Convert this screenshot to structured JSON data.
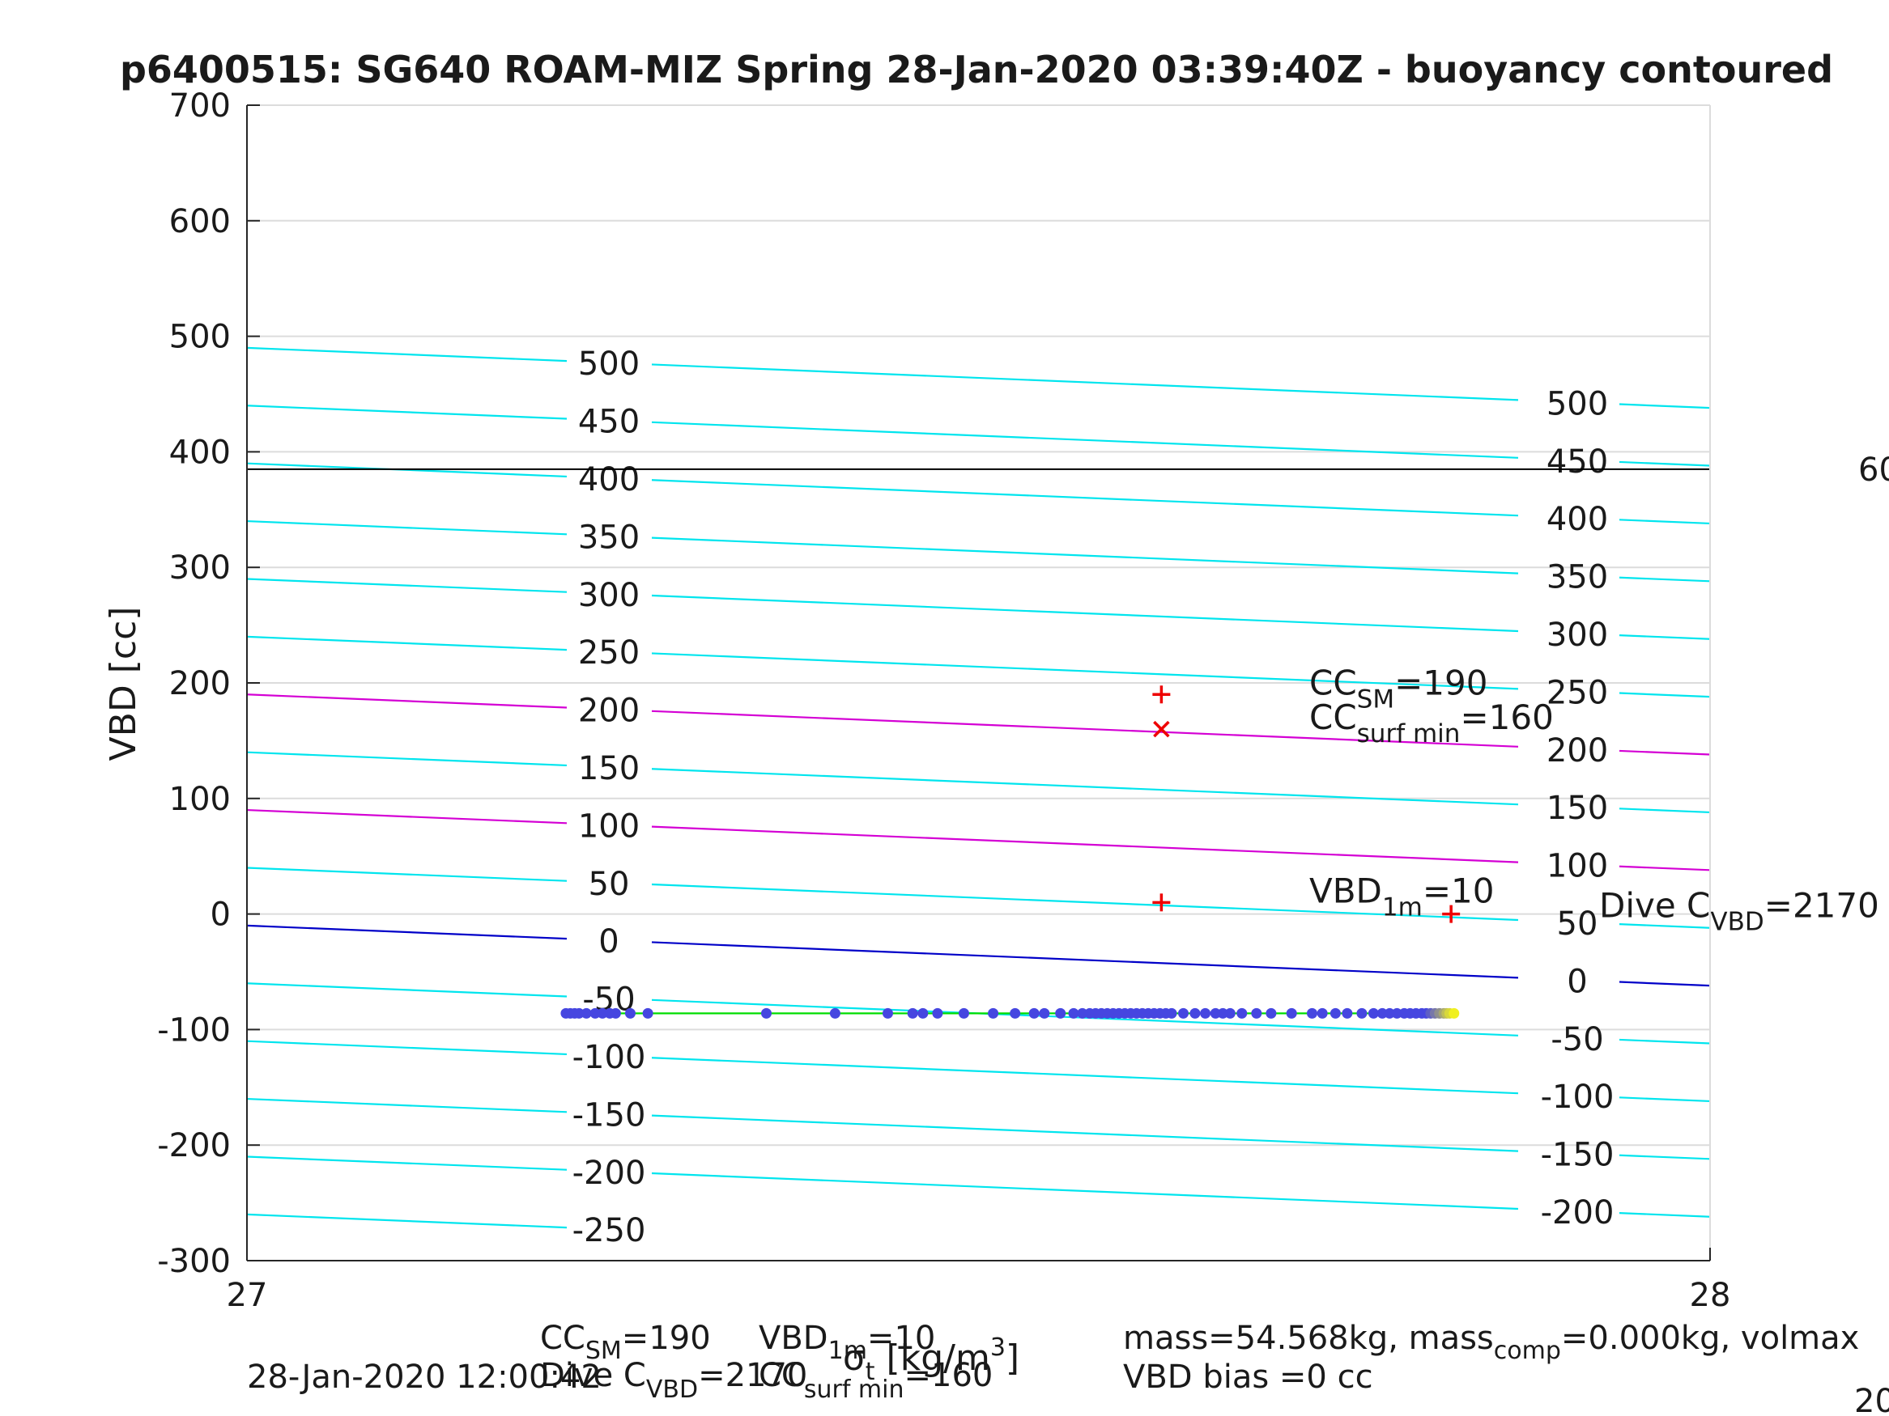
{
  "chart_data": {
    "type": "line",
    "title": "p6400515: SG640 ROAM-MIZ Spring 28-Jan-2020 03:39:40Z - buoyancy contoured",
    "xlabel": "σ_t [kg/m^3]",
    "ylabel": "VBD [cc]",
    "xlim": [
      27,
      28
    ],
    "ylim": [
      -300,
      700
    ],
    "x_ticks": [
      "27",
      "28"
    ],
    "y_ticks": [
      "-300",
      "-200",
      "-100",
      "0",
      "100",
      "200",
      "300",
      "400",
      "500",
      "600",
      "700"
    ],
    "grid": true,
    "colors": {
      "contour": "#00e5ee",
      "highlight_contour": "#d400d4",
      "zero_contour": "#0000c8",
      "fit_line": "#00dd00",
      "points": "#4646e0",
      "points_end": "#f0f020",
      "markers": "#ee0000",
      "reference_line": "#000000"
    },
    "contours": [
      {
        "value": 500,
        "y_left": 490,
        "y_right": 438,
        "label_left": "500",
        "label_right": "500"
      },
      {
        "value": 450,
        "y_left": 440,
        "y_right": 388,
        "label_left": "450",
        "label_right": "450"
      },
      {
        "value": 400,
        "y_left": 390,
        "y_right": 338,
        "label_left": "400",
        "label_right": "400"
      },
      {
        "value": 350,
        "y_left": 340,
        "y_right": 288,
        "label_left": "350",
        "label_right": "350"
      },
      {
        "value": 300,
        "y_left": 290,
        "y_right": 238,
        "label_left": "300",
        "label_right": "300"
      },
      {
        "value": 250,
        "y_left": 240,
        "y_right": 188,
        "label_left": "250",
        "label_right": "250"
      },
      {
        "value": 200,
        "y_left": 190,
        "y_right": 138,
        "label_left": "200",
        "label_right": "200"
      },
      {
        "value": 150,
        "y_left": 140,
        "y_right": 88,
        "label_left": "150",
        "label_right": "150"
      },
      {
        "value": 100,
        "y_left": 90,
        "y_right": 38,
        "label_left": "100",
        "label_right": "100"
      },
      {
        "value": 50,
        "y_left": 40,
        "y_right": -12,
        "label_left": "50",
        "label_right": "50"
      },
      {
        "value": 0,
        "y_left": -10,
        "y_right": -62,
        "label_left": "0",
        "label_right": "0"
      },
      {
        "value": -50,
        "y_left": -60,
        "y_right": -112,
        "label_left": "-50",
        "label_right": "-50"
      },
      {
        "value": -100,
        "y_left": -110,
        "y_right": -162,
        "label_left": "-100",
        "label_right": "-100"
      },
      {
        "value": -150,
        "y_left": -160,
        "y_right": -212,
        "label_left": "-150",
        "label_right": "-150"
      },
      {
        "value": -200,
        "y_left": -210,
        "y_right": -262,
        "label_left": "-200",
        "label_right": "-200"
      },
      {
        "value": -250,
        "y_left": -260,
        "y_right": -312,
        "label_left": "-250",
        "label_right": ""
      }
    ],
    "highlighted_contours": [
      200,
      100
    ],
    "zero_contour": 0,
    "reference_line": {
      "y": 385,
      "label": "60"
    },
    "fit_line": {
      "x": [
        27.215,
        27.825
      ],
      "y": [
        -86,
        -86
      ]
    },
    "scatter_x": [
      27.218,
      27.221,
      27.224,
      27.227,
      27.232,
      27.238,
      27.243,
      27.248,
      27.252,
      27.262,
      27.274,
      27.355,
      27.402,
      27.438,
      27.455,
      27.462,
      27.472,
      27.49,
      27.51,
      27.525,
      27.538,
      27.545,
      27.556,
      27.565,
      27.571,
      27.576,
      27.58,
      27.584,
      27.588,
      27.592,
      27.596,
      27.6,
      27.604,
      27.608,
      27.612,
      27.616,
      27.62,
      27.624,
      27.628,
      27.632,
      27.64,
      27.648,
      27.655,
      27.662,
      27.667,
      27.672,
      27.68,
      27.69,
      27.7,
      27.714,
      27.728,
      27.735,
      27.744,
      27.752,
      27.762,
      27.77,
      27.776,
      27.781,
      27.786,
      27.791,
      27.795,
      27.799,
      27.803,
      27.806,
      27.809,
      27.812,
      27.815,
      27.818,
      27.82,
      27.822,
      27.825
    ],
    "scatter_y": -86,
    "markers": [
      {
        "symbol": "+",
        "x": 27.625,
        "y": 190,
        "label_main": "CC",
        "label_sub": "SM",
        "label_value": "=190"
      },
      {
        "symbol": "x",
        "x": 27.625,
        "y": 160,
        "label_main": "CC",
        "label_sub": "surf min",
        "label_value": "=160"
      },
      {
        "symbol": "+",
        "x": 27.625,
        "y": 10,
        "label_main": "VBD",
        "label_sub": "1m",
        "label_value": "=10"
      },
      {
        "symbol": "+",
        "x": 27.823,
        "y": 0,
        "label_main": "Dive C",
        "label_sub": "VBD",
        "label_value": "=2170"
      }
    ],
    "footer": {
      "timestamp": "28-Jan-2020 12:00:42",
      "cc_sm": {
        "main": "CC",
        "sub": "SM",
        "value": "=190"
      },
      "dive_cvbd": {
        "main": "Dive C",
        "sub": "VBD",
        "value": "=2170"
      },
      "vbd_1m": {
        "main": "VBD",
        "sub": "1m",
        "value": "=10"
      },
      "cc_surf_min": {
        "main": "CC",
        "sub": "surf min",
        "value": "=160"
      },
      "mass_line": {
        "part1": "mass=54.568kg, mass",
        "sub": "comp",
        "part2": "=0.000kg, volmax"
      },
      "vbd_bias": "VBD bias =0 cc",
      "right_overflow": "20"
    }
  }
}
